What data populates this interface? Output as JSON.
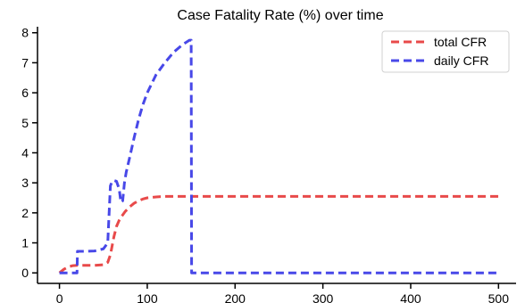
{
  "chart_data": {
    "type": "line",
    "title": "Case Fatality Rate (%) over time",
    "xlabel": "",
    "ylabel": "",
    "xlim": [
      -25,
      520
    ],
    "ylim": [
      -0.35,
      8.2
    ],
    "xticks": [
      0,
      100,
      200,
      300,
      400,
      500
    ],
    "yticks": [
      0,
      1,
      2,
      3,
      4,
      5,
      6,
      7,
      8
    ],
    "legend": "top-right",
    "grid": false,
    "series": [
      {
        "name": "total CFR",
        "color": "#e84a4a",
        "dash": "dashed",
        "x": [
          0,
          5,
          10,
          15,
          20,
          30,
          40,
          50,
          55,
          58,
          60,
          62,
          65,
          68,
          70,
          75,
          80,
          85,
          90,
          95,
          100,
          110,
          120,
          130,
          140,
          150,
          200,
          300,
          400,
          500
        ],
        "y": [
          0,
          0.12,
          0.2,
          0.24,
          0.25,
          0.25,
          0.25,
          0.27,
          0.35,
          0.6,
          0.9,
          1.2,
          1.55,
          1.75,
          1.85,
          2.05,
          2.2,
          2.32,
          2.4,
          2.46,
          2.5,
          2.53,
          2.55,
          2.55,
          2.55,
          2.55,
          2.55,
          2.55,
          2.55,
          2.55
        ]
      },
      {
        "name": "daily CFR",
        "color": "#4848e8",
        "dash": "dashed",
        "x": [
          0,
          20,
          20.5,
          30,
          40,
          50,
          55,
          58,
          60,
          62,
          65,
          68,
          70,
          72,
          74,
          76,
          80,
          85,
          90,
          95,
          100,
          110,
          120,
          130,
          140,
          148,
          150,
          150.5,
          160,
          200,
          300,
          400,
          500
        ],
        "y": [
          0,
          0,
          0.72,
          0.72,
          0.73,
          0.8,
          1.0,
          2.9,
          3.05,
          3.08,
          3.05,
          2.8,
          2.35,
          2.4,
          3.0,
          3.35,
          3.85,
          4.5,
          5.1,
          5.6,
          6.0,
          6.6,
          7.0,
          7.35,
          7.6,
          7.75,
          7.75,
          0,
          0,
          0,
          0,
          0,
          0
        ]
      }
    ]
  }
}
